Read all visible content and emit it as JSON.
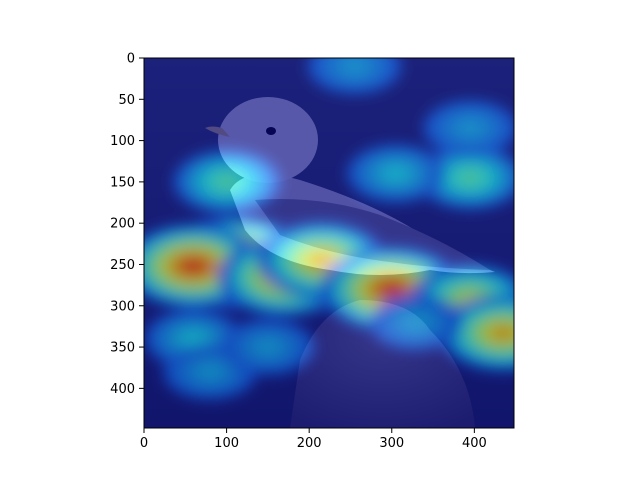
{
  "chart_data": {
    "type": "heatmap",
    "title": "",
    "xlabel": "",
    "ylabel": "",
    "xlim": [
      0,
      448
    ],
    "ylim": [
      448,
      0
    ],
    "x_ticks": [
      0,
      100,
      200,
      300,
      400
    ],
    "y_ticks": [
      0,
      50,
      100,
      150,
      200,
      250,
      300,
      350,
      400
    ],
    "x_tick_labels": [
      "0",
      "100",
      "200",
      "300",
      "400"
    ],
    "y_tick_labels": [
      "0",
      "50",
      "100",
      "150",
      "200",
      "250",
      "300",
      "350",
      "400"
    ],
    "grid": false,
    "colormap": "jet",
    "colormap_colors": [
      "#00007f",
      "#0000ff",
      "#00ffff",
      "#ffff00",
      "#ff0000",
      "#7f0000"
    ],
    "underlying_image": "seagull perched on a rock",
    "activation_hotspots": [
      {
        "x": 110,
        "y": 248,
        "intensity": 1.0
      },
      {
        "x": 60,
        "y": 252,
        "intensity": 0.85
      },
      {
        "x": 170,
        "y": 265,
        "intensity": 0.75
      },
      {
        "x": 215,
        "y": 245,
        "intensity": 0.7
      },
      {
        "x": 300,
        "y": 280,
        "intensity": 0.85
      },
      {
        "x": 395,
        "y": 293,
        "intensity": 0.6
      },
      {
        "x": 435,
        "y": 333,
        "intensity": 0.7
      },
      {
        "x": 395,
        "y": 145,
        "intensity": 0.45
      },
      {
        "x": 100,
        "y": 150,
        "intensity": 0.45
      },
      {
        "x": 305,
        "y": 140,
        "intensity": 0.35
      },
      {
        "x": 255,
        "y": 10,
        "intensity": 0.3
      },
      {
        "x": 395,
        "y": 85,
        "intensity": 0.3
      },
      {
        "x": 60,
        "y": 340,
        "intensity": 0.35
      },
      {
        "x": 80,
        "y": 380,
        "intensity": 0.3
      },
      {
        "x": 150,
        "y": 350,
        "intensity": 0.3
      },
      {
        "x": 330,
        "y": 320,
        "intensity": 0.3
      }
    ]
  }
}
